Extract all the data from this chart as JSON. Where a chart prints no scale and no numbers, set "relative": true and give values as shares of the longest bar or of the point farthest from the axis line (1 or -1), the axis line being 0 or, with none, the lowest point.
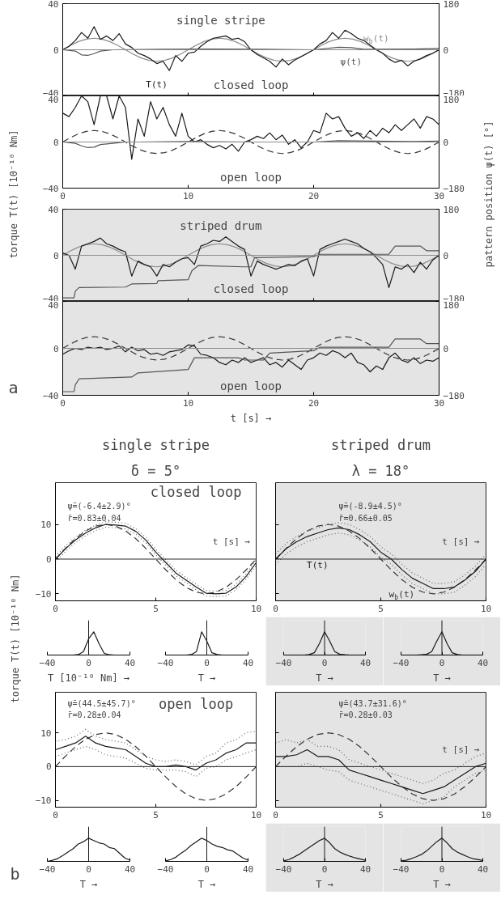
{
  "chart_data": [
    {
      "type": "line",
      "ylabel": "torque T(t) [10⁻¹⁰ Nm]",
      "y2label": "pattern position ψ(t) [°]",
      "annotations": [
        "single stripe",
        "closed loop"
      ],
      "tick_labels": "y",
      "x": [
        0,
        0.5,
        1,
        1.5,
        2,
        2.5,
        3,
        3.5,
        4,
        4.5,
        5,
        5.5,
        6,
        6.5,
        7,
        7.5,
        8,
        8.5,
        9,
        9.5,
        10,
        10.5,
        11,
        11.5,
        12,
        12.5,
        13,
        13.5,
        14,
        14.5,
        15,
        15.5,
        16,
        16.5,
        17,
        17.5,
        18,
        18.5,
        19,
        19.5,
        20,
        20.5,
        21,
        21.5,
        22,
        22.5,
        23,
        23.5,
        24,
        24.5,
        25,
        25.5,
        26,
        26.5,
        27,
        27.5,
        28,
        28.5,
        29,
        29.5,
        30
      ],
      "xlim": [
        0,
        30
      ],
      "xticks": [
        0,
        10,
        20,
        30
      ],
      "ylim": [
        -40,
        40
      ],
      "yticks": [
        -40,
        0,
        40
      ],
      "y2lim": [
        -180,
        180
      ],
      "y2ticks": [
        -180,
        0,
        180
      ],
      "ref_lines": [
        {
          "axis": "y",
          "value": 0,
          "color": "#8c8c8c"
        }
      ],
      "series": [
        {
          "name": "w$_{b}$(t)",
          "color": "#8c8c8c",
          "line_style": "solid",
          "x": [
            0,
            0.625,
            1.25,
            1.875,
            2.5,
            3.125,
            3.75,
            4.375,
            5,
            5.625,
            6.25,
            6.875,
            7.5,
            8.125,
            8.75,
            9.375,
            10,
            10.625,
            11.25,
            11.875,
            12.5,
            13.125,
            13.75,
            14.375,
            15,
            15.625,
            16.25,
            16.875,
            17.5,
            18.125,
            18.75,
            19.375,
            20,
            20.625,
            21.25,
            21.875,
            22.5,
            23.125,
            23.75,
            24.375,
            25,
            25.625,
            26.25,
            26.875,
            27.5,
            28.125,
            28.75,
            29.375,
            30
          ],
          "values": [
            0,
            3.8,
            7.1,
            9.2,
            10,
            9.2,
            7.1,
            3.8,
            0,
            -3.8,
            -7.1,
            -9.2,
            -10,
            -9.2,
            -7.1,
            -3.8,
            0,
            3.8,
            7.1,
            9.2,
            10,
            9.2,
            7.1,
            3.8,
            0,
            -3.8,
            -7.1,
            -9.2,
            -10,
            -9.2,
            -7.1,
            -3.8,
            0,
            3.8,
            7.1,
            9.2,
            10,
            9.2,
            7.1,
            3.8,
            0,
            -3.8,
            -7.1,
            -9.2,
            -10,
            -9.2,
            -7.1,
            -3.8,
            0
          ]
        },
        {
          "name": "T(t)",
          "color": "#1a1a1a",
          "values": [
            0,
            3,
            8,
            15,
            10,
            20,
            9,
            12,
            8,
            14,
            5,
            2,
            -3,
            -5,
            -8,
            -12,
            -10,
            -18,
            -5,
            -10,
            -3,
            -2,
            3,
            7,
            10,
            11,
            12,
            9,
            10,
            7,
            0,
            -4,
            -7,
            -10,
            -15,
            -8,
            -13,
            -9,
            -6,
            -3,
            0,
            5,
            8,
            15,
            10,
            17,
            14,
            10,
            8,
            4,
            0,
            -3,
            -8,
            -11,
            -9,
            -14,
            -10,
            -8,
            -5,
            -3,
            0
          ]
        },
        {
          "name": "ψ(t)",
          "color": "#555555",
          "axis": "y2",
          "x": [
            0,
            1,
            1.5,
            2,
            2.5,
            3,
            4,
            8,
            12,
            16,
            20,
            22,
            23,
            24,
            28,
            30
          ],
          "values": [
            0,
            -5,
            -20,
            -22,
            -15,
            -5,
            0,
            2,
            3,
            2,
            0,
            10,
            8,
            2,
            3,
            5
          ]
        }
      ]
    },
    {
      "type": "line",
      "annotations": [
        "open loop"
      ],
      "x": [
        0,
        0.5,
        1,
        1.5,
        2,
        2.5,
        3,
        3.5,
        4,
        4.5,
        5,
        5.5,
        6,
        6.5,
        7,
        7.5,
        8,
        8.5,
        9,
        9.5,
        10,
        10.5,
        11,
        11.5,
        12,
        12.5,
        13,
        13.5,
        14,
        14.5,
        15,
        15.5,
        16,
        16.5,
        17,
        17.5,
        18,
        18.5,
        19,
        19.5,
        20,
        20.5,
        21,
        21.5,
        22,
        22.5,
        23,
        23.5,
        24,
        24.5,
        25,
        25.5,
        26,
        26.5,
        27,
        27.5,
        28,
        28.5,
        29,
        29.5,
        30
      ],
      "xlim": [
        0,
        30
      ],
      "xticks": [
        0,
        10,
        20,
        30
      ],
      "ylim": [
        -40,
        40
      ],
      "yticks": [
        -40,
        0,
        40
      ],
      "y2lim": [
        -180,
        180
      ],
      "y2ticks": [
        -180,
        0,
        180
      ],
      "ref_lines": [
        {
          "axis": "y",
          "value": 0,
          "color": "#8c8c8c"
        }
      ],
      "series": [
        {
          "color": "#333333",
          "line_style": "dashed",
          "x": [
            0,
            0.625,
            1.25,
            1.875,
            2.5,
            3.125,
            3.75,
            4.375,
            5,
            5.625,
            6.25,
            6.875,
            7.5,
            8.125,
            8.75,
            9.375,
            10,
            10.625,
            11.25,
            11.875,
            12.5,
            13.125,
            13.75,
            14.375,
            15,
            15.625,
            16.25,
            16.875,
            17.5,
            18.125,
            18.75,
            19.375,
            20,
            20.625,
            21.25,
            21.875,
            22.5,
            23.125,
            23.75,
            24.375,
            25,
            25.625,
            26.25,
            26.875,
            27.5,
            28.125,
            28.75,
            29.375,
            30
          ],
          "values": [
            0,
            3.8,
            7.1,
            9.2,
            10,
            9.2,
            7.1,
            3.8,
            0,
            -3.8,
            -7.1,
            -9.2,
            -10,
            -9.2,
            -7.1,
            -3.8,
            0,
            3.8,
            7.1,
            9.2,
            10,
            9.2,
            7.1,
            3.8,
            0,
            -3.8,
            -7.1,
            -9.2,
            -10,
            -9.2,
            -7.1,
            -3.8,
            0,
            3.8,
            7.1,
            9.2,
            10,
            9.2,
            7.1,
            3.8,
            0,
            -3.8,
            -7.1,
            -9.2,
            -10,
            -9.2,
            -7.1,
            -3.8,
            0
          ]
        },
        {
          "color": "#1a1a1a",
          "values": [
            25,
            22,
            30,
            40,
            35,
            15,
            40,
            40,
            20,
            40,
            30,
            -15,
            20,
            5,
            35,
            20,
            30,
            15,
            5,
            25,
            5,
            0,
            2,
            -2,
            -5,
            -3,
            -6,
            -2,
            -8,
            0,
            2,
            5,
            3,
            8,
            2,
            6,
            -2,
            2,
            -5,
            0,
            10,
            8,
            25,
            20,
            22,
            12,
            5,
            8,
            3,
            10,
            5,
            12,
            8,
            15,
            10,
            15,
            20,
            12,
            22,
            20,
            15
          ]
        },
        {
          "color": "#555555",
          "axis": "y2",
          "x": [
            0,
            1,
            1.5,
            2,
            2.5,
            3,
            4,
            5,
            6,
            10,
            15,
            20,
            22,
            26,
            28,
            30
          ],
          "values": [
            0,
            -5,
            -15,
            -22,
            -20,
            -10,
            -5,
            0,
            0,
            2,
            0,
            0,
            5,
            3,
            2,
            4
          ]
        }
      ]
    },
    {
      "type": "line",
      "annotations": [
        "striped drum",
        "closed loop"
      ],
      "tick_labels": "y",
      "x": [
        0,
        0.5,
        1,
        1.5,
        2,
        2.5,
        3,
        3.5,
        4,
        4.5,
        5,
        5.5,
        6,
        6.5,
        7,
        7.5,
        8,
        8.5,
        9,
        9.5,
        10,
        10.5,
        11,
        11.5,
        12,
        12.5,
        13,
        13.5,
        14,
        14.5,
        15,
        15.5,
        16,
        16.5,
        17,
        17.5,
        18,
        18.5,
        19,
        19.5,
        20,
        20.5,
        21,
        21.5,
        22,
        22.5,
        23,
        23.5,
        24,
        24.5,
        25,
        25.5,
        26,
        26.5,
        27,
        27.5,
        28,
        28.5,
        29,
        29.5,
        30
      ],
      "xlim": [
        0,
        30
      ],
      "xticks": [
        0,
        10,
        20,
        30
      ],
      "ylim": [
        -40,
        40
      ],
      "yticks": [
        -40,
        0,
        40
      ],
      "y2lim": [
        -180,
        180
      ],
      "y2ticks": [
        -180,
        0,
        180
      ],
      "ref_lines": [
        {
          "axis": "y",
          "value": 0,
          "color": "#8c8c8c"
        }
      ],
      "series": [
        {
          "color": "#8c8c8c",
          "line_style": "solid",
          "x": [
            0,
            0.625,
            1.25,
            1.875,
            2.5,
            3.125,
            3.75,
            4.375,
            5,
            5.625,
            6.25,
            6.875,
            7.5,
            8.125,
            8.75,
            9.375,
            10,
            10.625,
            11.25,
            11.875,
            12.5,
            13.125,
            13.75,
            14.375,
            15,
            15.625,
            16.25,
            16.875,
            17.5,
            18.125,
            18.75,
            19.375,
            20,
            20.625,
            21.25,
            21.875,
            22.5,
            23.125,
            23.75,
            24.375,
            25,
            25.625,
            26.25,
            26.875,
            27.5,
            28.125,
            28.75,
            29.375,
            30
          ],
          "values": [
            0,
            3.8,
            7.1,
            9.2,
            10,
            9.2,
            7.1,
            3.8,
            0,
            -3.8,
            -7.1,
            -9.2,
            -10,
            -9.2,
            -7.1,
            -3.8,
            0,
            3.8,
            7.1,
            9.2,
            10,
            9.2,
            7.1,
            3.8,
            0,
            -3.8,
            -7.1,
            -9.2,
            -10,
            -9.2,
            -7.1,
            -3.8,
            0,
            3.8,
            7.1,
            9.2,
            10,
            9.2,
            7.1,
            3.8,
            0,
            -3.8,
            -7.1,
            -9.2,
            -10,
            -9.2,
            -7.1,
            -3.8,
            0
          ]
        },
        {
          "color": "#1a1a1a",
          "values": [
            2,
            0,
            -12,
            8,
            10,
            12,
            15,
            10,
            8,
            5,
            3,
            -18,
            -5,
            -8,
            -10,
            -18,
            -8,
            -10,
            -6,
            -3,
            -2,
            -8,
            8,
            10,
            13,
            12,
            16,
            12,
            8,
            5,
            -18,
            -5,
            -8,
            -10,
            -12,
            -10,
            -8,
            -9,
            -5,
            -3,
            -18,
            5,
            8,
            10,
            12,
            14,
            12,
            10,
            6,
            3,
            -2,
            -8,
            -28,
            -10,
            -12,
            -8,
            -15,
            -6,
            -12,
            -4,
            0
          ]
        },
        {
          "color": "#555555",
          "axis": "y2",
          "x": [
            0,
            0.9,
            1,
            1.3,
            5,
            5.5,
            7.5,
            7.6,
            10,
            10.3,
            10.8,
            14.5,
            15,
            15.3,
            20,
            20.5,
            26,
            26.5,
            28.5,
            29,
            30
          ],
          "values": [
            -166,
            -166,
            -140,
            -126,
            -124,
            -112,
            -110,
            -99,
            -95,
            -60,
            -40,
            -45,
            -45,
            -9,
            -5,
            4,
            4,
            36,
            36,
            18,
            18
          ]
        }
      ]
    },
    {
      "type": "line",
      "annotations": [
        "open loop",
        "a"
      ],
      "xlabel": "t [s] →",
      "x": [
        0,
        0.5,
        1,
        1.5,
        2,
        2.5,
        3,
        3.5,
        4,
        4.5,
        5,
        5.5,
        6,
        6.5,
        7,
        7.5,
        8,
        8.5,
        9,
        9.5,
        10,
        10.5,
        11,
        11.5,
        12,
        12.5,
        13,
        13.5,
        14,
        14.5,
        15,
        15.5,
        16,
        16.5,
        17,
        17.5,
        18,
        18.5,
        19,
        19.5,
        20,
        20.5,
        21,
        21.5,
        22,
        22.5,
        23,
        23.5,
        24,
        24.5,
        25,
        25.5,
        26,
        26.5,
        27,
        27.5,
        28,
        28.5,
        29,
        29.5,
        30
      ],
      "xlim": [
        0,
        30
      ],
      "xticks": [
        0,
        10,
        20,
        30
      ],
      "ylim": [
        -40,
        40
      ],
      "yticks": [
        -40,
        0,
        40
      ],
      "y2lim": [
        -180,
        180
      ],
      "y2ticks": [
        -180,
        0,
        180
      ],
      "ref_lines": [
        {
          "axis": "y",
          "value": 0,
          "color": "#8c8c8c"
        }
      ],
      "series": [
        {
          "color": "#333333",
          "line_style": "dashed",
          "x": [
            0,
            0.625,
            1.25,
            1.875,
            2.5,
            3.125,
            3.75,
            4.375,
            5,
            5.625,
            6.25,
            6.875,
            7.5,
            8.125,
            8.75,
            9.375,
            10,
            10.625,
            11.25,
            11.875,
            12.5,
            13.125,
            13.75,
            14.375,
            15,
            15.625,
            16.25,
            16.875,
            17.5,
            18.125,
            18.75,
            19.375,
            20,
            20.625,
            21.25,
            21.875,
            22.5,
            23.125,
            23.75,
            24.375,
            25,
            25.625,
            26.25,
            26.875,
            27.5,
            28.125,
            28.75,
            29.375,
            30
          ],
          "values": [
            0,
            3.8,
            7.1,
            9.2,
            10,
            9.2,
            7.1,
            3.8,
            0,
            -3.8,
            -7.1,
            -9.2,
            -10,
            -9.2,
            -7.1,
            -3.8,
            0,
            3.8,
            7.1,
            9.2,
            10,
            9.2,
            7.1,
            3.8,
            0,
            -3.8,
            -7.1,
            -9.2,
            -10,
            -9.2,
            -7.1,
            -3.8,
            0,
            3.8,
            7.1,
            9.2,
            10,
            9.2,
            7.1,
            3.8,
            0,
            -3.8,
            -7.1,
            -9.2,
            -10,
            -9.2,
            -7.1,
            -3.8,
            0
          ]
        },
        {
          "color": "#1a1a1a",
          "values": [
            -5,
            -2,
            0,
            -1,
            1,
            0,
            1,
            -1,
            0,
            2,
            -3,
            1,
            -2,
            -1,
            -5,
            -4,
            -6,
            -3,
            -2,
            -1,
            3,
            2,
            -5,
            -6,
            -8,
            -12,
            -14,
            -10,
            -12,
            -8,
            -12,
            -10,
            -8,
            -14,
            -12,
            -16,
            -10,
            -14,
            -18,
            -10,
            -8,
            -4,
            -6,
            -2,
            -4,
            -8,
            -4,
            -12,
            -14,
            -20,
            -15,
            -18,
            -8,
            -4,
            -10,
            -12,
            -8,
            -13,
            -10,
            -11,
            -8
          ]
        },
        {
          "color": "#555555",
          "axis": "y2",
          "x": [
            0,
            0.9,
            1,
            1.3,
            5.5,
            6,
            10,
            10.5,
            14,
            14.5,
            16,
            16.5,
            20,
            20.5,
            26,
            26.5,
            28.5,
            29,
            30
          ],
          "values": [
            -166,
            -166,
            -140,
            -117,
            -110,
            -94,
            -81,
            -36,
            -36,
            -45,
            -45,
            -18,
            -9,
            4,
            4,
            36,
            36,
            18,
            18
          ]
        }
      ]
    },
    {
      "type": "line",
      "title": "single stripe",
      "subtitle": "δ = 5°",
      "ylabel": "torque T(t) [10⁻¹⁰ Nm]",
      "xlabel": "t [s] →",
      "annotations": [
        "ψ̄=(-6.4±2.9)°",
        "r̄=0.83±0.04",
        "closed loop"
      ],
      "x": [
        0,
        0.5,
        1,
        1.5,
        2,
        2.5,
        3,
        3.5,
        4,
        4.5,
        5,
        5.5,
        6,
        6.5,
        7,
        7.5,
        8,
        8.5,
        9,
        9.5,
        10
      ],
      "xlim": [
        0,
        10
      ],
      "xticks": [
        0,
        5,
        10
      ],
      "ylim": [
        -12,
        22
      ],
      "yticks": [
        -10,
        0,
        10
      ],
      "ref_lines": [
        {
          "axis": "y",
          "value": 0,
          "color": "#222222"
        }
      ],
      "series": [
        {
          "color": "#333333",
          "line_style": "dashed",
          "values": [
            0,
            3.1,
            5.9,
            8.1,
            9.5,
            10,
            9.5,
            8.1,
            5.9,
            3.1,
            0,
            -3.1,
            -5.9,
            -8.1,
            -9.5,
            -10,
            -9.5,
            -8.1,
            -5.9,
            -3.1,
            0
          ]
        },
        {
          "color": "#1a1a1a",
          "values": [
            0,
            3,
            5.5,
            7.5,
            9,
            10,
            9.8,
            9.5,
            8,
            5.5,
            2,
            -1,
            -4,
            -6,
            -8,
            -9.8,
            -10,
            -9.8,
            -8,
            -5,
            -1
          ]
        },
        {
          "color": "#666666",
          "line_style": "dotted",
          "values": [
            -0.8,
            2.2,
            4.7,
            6.7,
            8.2,
            9.2,
            9,
            8.7,
            7.2,
            4.7,
            1.2,
            -1.8,
            -4.8,
            -6.8,
            -8.8,
            -10.6,
            -10.8,
            -10.6,
            -8.8,
            -5.8,
            -1.8
          ]
        },
        {
          "color": "#666666",
          "line_style": "dotted",
          "values": [
            0.8,
            3.8,
            6.3,
            8.3,
            9.8,
            10.8,
            10.6,
            10.3,
            8.8,
            6.3,
            2.8,
            -0.2,
            -3.2,
            -5.2,
            -7.2,
            -9,
            -9.2,
            -9,
            -7.2,
            -4.2,
            -0.2
          ]
        }
      ]
    },
    {
      "type": "line",
      "title": "striped drum",
      "subtitle": "λ = 18°",
      "xlabel": "t [s] →",
      "annotations": [
        "ψ̄=(-8.9±4.5)°",
        "r̄=0.66±0.05"
      ],
      "tick_labels": "x",
      "x": [
        0,
        0.5,
        1,
        1.5,
        2,
        2.5,
        3,
        3.5,
        4,
        4.5,
        5,
        5.5,
        6,
        6.5,
        7,
        7.5,
        8,
        8.5,
        9,
        9.5,
        10
      ],
      "xlim": [
        0,
        10
      ],
      "xticks": [
        0,
        5,
        10
      ],
      "ylim": [
        -12,
        22
      ],
      "yticks": [
        -10,
        0,
        10
      ],
      "ref_lines": [
        {
          "axis": "y",
          "value": 0,
          "color": "#222222"
        }
      ],
      "series": [
        {
          "name": "w$_{b}$(t)",
          "color": "#333333",
          "line_style": "dashed",
          "values": [
            0,
            3.1,
            5.9,
            8.1,
            9.5,
            10,
            9.5,
            8.1,
            5.9,
            3.1,
            0,
            -3.1,
            -5.9,
            -8.1,
            -9.5,
            -10,
            -9.5,
            -8.1,
            -5.9,
            -3.1,
            0
          ]
        },
        {
          "name": "T(t)",
          "color": "#1a1a1a",
          "values": [
            0,
            3,
            5,
            6.5,
            7.5,
            8.5,
            9,
            8.5,
            7,
            5,
            2,
            0,
            -3,
            -5.5,
            -7,
            -8.5,
            -8.5,
            -8,
            -6,
            -3.5,
            0
          ]
        },
        {
          "color": "#666666",
          "line_style": "dotted",
          "values": [
            -1.5,
            1.5,
            3.5,
            5,
            6,
            7,
            7.5,
            7,
            5.5,
            3.5,
            0.5,
            -1.5,
            -4.5,
            -7,
            -8.5,
            -10,
            -10,
            -9.5,
            -7.5,
            -5,
            -1.5
          ]
        },
        {
          "color": "#666666",
          "line_style": "dotted",
          "values": [
            1.5,
            4.5,
            6.5,
            8,
            9,
            10,
            10.5,
            10,
            8.5,
            6.5,
            3.5,
            1.5,
            -1.5,
            -4,
            -5.5,
            -7,
            -7,
            -6.5,
            -4.5,
            -2,
            1.5
          ]
        }
      ]
    },
    {
      "type": "line",
      "annotations": [
        "ψ̄=(44.5±45.7)°",
        "r̄=0.28±0.04",
        "open loop",
        "b"
      ],
      "x": [
        0,
        0.5,
        1,
        1.5,
        2,
        2.5,
        3,
        3.5,
        4,
        4.5,
        5,
        5.5,
        6,
        6.5,
        7,
        7.5,
        8,
        8.5,
        9,
        9.5,
        10
      ],
      "xlim": [
        0,
        10
      ],
      "xticks": [
        0,
        5,
        10
      ],
      "ylim": [
        -12,
        22
      ],
      "yticks": [
        -10,
        0,
        10
      ],
      "ref_lines": [
        {
          "axis": "y",
          "value": 0,
          "color": "#222222"
        }
      ],
      "series": [
        {
          "color": "#333333",
          "line_style": "dashed",
          "values": [
            0,
            3.1,
            5.9,
            8.1,
            9.5,
            10,
            9.5,
            8.1,
            5.9,
            3.1,
            0,
            -3.1,
            -5.9,
            -8.1,
            -9.5,
            -10,
            -9.5,
            -8.1,
            -5.9,
            -3.1,
            0
          ]
        },
        {
          "color": "#1a1a1a",
          "values": [
            5,
            6,
            7,
            9,
            7,
            6,
            5.5,
            5,
            3,
            1,
            0,
            0,
            0.5,
            0,
            -1,
            1,
            2,
            4,
            5,
            7,
            7
          ]
        },
        {
          "color": "#666666",
          "line_style": "dotted",
          "values": [
            3,
            4,
            5,
            6,
            5,
            3.5,
            3,
            2.5,
            1,
            -0.5,
            -1,
            -1,
            -1,
            -1.5,
            -3,
            -0.5,
            0,
            2,
            3,
            4,
            5
          ]
        },
        {
          "color": "#666666",
          "line_style": "dotted",
          "values": [
            7.5,
            8,
            9,
            11,
            9,
            8,
            7.5,
            7,
            5,
            3,
            2,
            1.5,
            2,
            1.5,
            0.5,
            3,
            4,
            7,
            8,
            10,
            10.5
          ]
        }
      ]
    },
    {
      "type": "line",
      "xlabel": "t [s] →",
      "annotations": [
        "ψ̄=(43.7±31.6)°",
        "r̄=0.28±0.03"
      ],
      "tick_labels": "x",
      "x": [
        0,
        0.5,
        1,
        1.5,
        2,
        2.5,
        3,
        3.5,
        4,
        4.5,
        5,
        5.5,
        6,
        6.5,
        7,
        7.5,
        8,
        8.5,
        9,
        9.5,
        10
      ],
      "xlim": [
        0,
        10
      ],
      "xticks": [
        0,
        5,
        10
      ],
      "ylim": [
        -12,
        22
      ],
      "yticks": [
        -10,
        0,
        10
      ],
      "ref_lines": [
        {
          "axis": "y",
          "value": 0,
          "color": "#222222"
        }
      ],
      "series": [
        {
          "color": "#333333",
          "line_style": "dashed",
          "values": [
            0,
            3.1,
            5.9,
            8.1,
            9.5,
            10,
            9.5,
            8.1,
            5.9,
            3.1,
            0,
            -3.1,
            -5.9,
            -8.1,
            -9.5,
            -10,
            -9.5,
            -8.1,
            -5.9,
            -3.1,
            0
          ]
        },
        {
          "color": "#1a1a1a",
          "values": [
            3,
            3,
            3.5,
            5,
            3,
            3,
            2,
            -1,
            -2,
            -3,
            -4,
            -5,
            -6,
            -7,
            -8,
            -7,
            -6,
            -4,
            -2,
            0,
            1
          ]
        },
        {
          "color": "#666666",
          "line_style": "dotted",
          "values": [
            0,
            0,
            0,
            1,
            0,
            -1,
            -1.5,
            -4,
            -5,
            -6,
            -7,
            -8,
            -9,
            -10,
            -11,
            -10,
            -9,
            -6,
            -4,
            -2,
            -1
          ]
        },
        {
          "color": "#666666",
          "line_style": "dotted",
          "values": [
            7,
            8,
            7,
            8,
            6,
            6,
            5,
            2,
            1,
            0,
            -1,
            -2,
            -3,
            -4,
            -5,
            -4,
            -2,
            -1,
            1,
            3,
            4
          ]
        }
      ]
    },
    {
      "type": "line",
      "relative": true,
      "xlabel": "T [10⁻¹⁰ Nm] →",
      "x": [
        -40,
        -35,
        -30,
        -25,
        -20,
        -15,
        -10,
        -5,
        0,
        5,
        10,
        15,
        20,
        25,
        30,
        35,
        40
      ],
      "xlim": [
        -40,
        40
      ],
      "xticks": [
        -40,
        0,
        40
      ],
      "tick_labels": "x",
      "ref_lines": [
        {
          "axis": "x",
          "value": 0,
          "color": "#1a1a1a"
        }
      ],
      "color": "#1a1a1a",
      "values": [
        0,
        0,
        0,
        0,
        0,
        0,
        0.02,
        0.15,
        0.7,
        1,
        0.5,
        0.08,
        0.01,
        0,
        0,
        0,
        0
      ]
    },
    {
      "type": "line",
      "relative": true,
      "xlabel": "T →",
      "x": [
        -40,
        -35,
        -30,
        -25,
        -20,
        -15,
        -10,
        -5,
        0,
        5,
        10,
        15,
        20,
        25,
        30,
        35,
        40
      ],
      "xlim": [
        -40,
        40
      ],
      "xticks": [
        -40,
        0,
        40
      ],
      "tick_labels": "x",
      "ref_lines": [
        {
          "axis": "x",
          "value": 0,
          "color": "#1a1a1a"
        }
      ],
      "color": "#1a1a1a",
      "values": [
        0,
        0,
        0,
        0,
        0,
        0.02,
        0.15,
        1,
        0.6,
        0.1,
        0.02,
        0,
        0,
        0,
        0,
        0,
        0
      ]
    },
    {
      "type": "line",
      "relative": true,
      "xlabel": "T →",
      "x": [
        -40,
        -35,
        -30,
        -25,
        -20,
        -15,
        -10,
        -5,
        0,
        5,
        10,
        15,
        20,
        25,
        30,
        35,
        40
      ],
      "xlim": [
        -40,
        40
      ],
      "xticks": [
        -40,
        0,
        40
      ],
      "tick_labels": "x",
      "ref_lines": [
        {
          "axis": "x",
          "value": 0,
          "color": "#1a1a1a"
        }
      ],
      "color": "#1a1a1a",
      "values": [
        0,
        0,
        0,
        0,
        0,
        0.02,
        0.1,
        0.5,
        1,
        0.6,
        0.15,
        0.03,
        0.01,
        0,
        0,
        0,
        0
      ]
    },
    {
      "type": "line",
      "relative": true,
      "xlabel": "T →",
      "x": [
        -40,
        -35,
        -30,
        -25,
        -20,
        -15,
        -10,
        -5,
        0,
        5,
        10,
        15,
        20,
        25,
        30,
        35,
        40
      ],
      "xlim": [
        -40,
        40
      ],
      "xticks": [
        -40,
        0,
        40
      ],
      "tick_labels": "x",
      "ref_lines": [
        {
          "axis": "x",
          "value": 0,
          "color": "#1a1a1a"
        }
      ],
      "color": "#1a1a1a",
      "values": [
        0,
        0,
        0,
        0,
        0.01,
        0.03,
        0.15,
        0.6,
        1,
        0.5,
        0.1,
        0.02,
        0,
        0,
        0,
        0,
        0
      ]
    },
    {
      "type": "line",
      "relative": true,
      "xlabel": "T →",
      "x": [
        -40,
        -35,
        -30,
        -25,
        -20,
        -15,
        -10,
        -5,
        0,
        5,
        10,
        15,
        20,
        25,
        30,
        35,
        40
      ],
      "xlim": [
        -40,
        40
      ],
      "xticks": [
        -40,
        0,
        40
      ],
      "tick_labels": "x",
      "ref_lines": [
        {
          "axis": "x",
          "value": 0,
          "color": "#1a1a1a"
        }
      ],
      "color": "#1a1a1a",
      "values": [
        0,
        0.05,
        0.12,
        0.25,
        0.4,
        0.55,
        0.75,
        0.85,
        1,
        0.9,
        0.8,
        0.75,
        0.6,
        0.55,
        0.35,
        0.15,
        0.05
      ]
    },
    {
      "type": "line",
      "relative": true,
      "xlabel": "T →",
      "x": [
        -40,
        -35,
        -30,
        -25,
        -20,
        -15,
        -10,
        -5,
        0,
        5,
        10,
        15,
        20,
        25,
        30,
        35,
        40
      ],
      "xlim": [
        -40,
        40
      ],
      "xticks": [
        -40,
        0,
        40
      ],
      "tick_labels": "x",
      "ref_lines": [
        {
          "axis": "x",
          "value": 0,
          "color": "#1a1a1a"
        }
      ],
      "color": "#1a1a1a",
      "values": [
        0.02,
        0.08,
        0.18,
        0.35,
        0.5,
        0.7,
        0.85,
        1,
        0.9,
        0.75,
        0.65,
        0.6,
        0.5,
        0.45,
        0.3,
        0.15,
        0.05
      ]
    },
    {
      "type": "line",
      "relative": true,
      "xlabel": "T →",
      "x": [
        -40,
        -35,
        -30,
        -25,
        -20,
        -15,
        -10,
        -5,
        0,
        5,
        10,
        15,
        20,
        25,
        30,
        35,
        40
      ],
      "xlim": [
        -40,
        40
      ],
      "xticks": [
        -40,
        0,
        40
      ],
      "tick_labels": "x",
      "ref_lines": [
        {
          "axis": "x",
          "value": 0,
          "color": "#1a1a1a"
        }
      ],
      "color": "#1a1a1a",
      "values": [
        0.02,
        0.08,
        0.18,
        0.3,
        0.45,
        0.6,
        0.75,
        0.9,
        1,
        0.8,
        0.55,
        0.4,
        0.3,
        0.22,
        0.15,
        0.1,
        0.05
      ]
    },
    {
      "type": "line",
      "relative": true,
      "xlabel": "T →",
      "x": [
        -40,
        -35,
        -30,
        -25,
        -20,
        -15,
        -10,
        -5,
        0,
        5,
        10,
        15,
        20,
        25,
        30,
        35,
        40
      ],
      "xlim": [
        -40,
        40
      ],
      "xticks": [
        -40,
        0,
        40
      ],
      "tick_labels": "x",
      "ref_lines": [
        {
          "axis": "x",
          "value": 0,
          "color": "#1a1a1a"
        }
      ],
      "color": "#1a1a1a",
      "values": [
        0.02,
        0.05,
        0.12,
        0.2,
        0.3,
        0.45,
        0.65,
        0.85,
        1,
        0.8,
        0.55,
        0.4,
        0.3,
        0.2,
        0.12,
        0.08,
        0.04
      ]
    }
  ]
}
